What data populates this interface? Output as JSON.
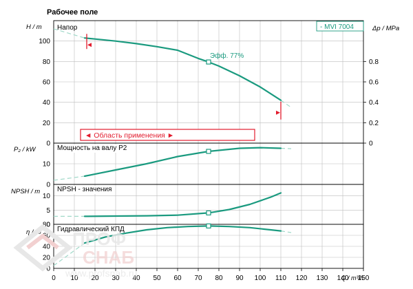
{
  "title": "Рабочее поле",
  "model_label": "- MVI 7004",
  "x_axis": {
    "label": "Q / m³/h",
    "range": [
      0,
      150
    ],
    "ticks": [
      0,
      10,
      20,
      30,
      40,
      50,
      60,
      70,
      80,
      90,
      100,
      110,
      120,
      130,
      140,
      150
    ]
  },
  "colors": {
    "curve": "#1a9a7f",
    "marker": "#e21b2d",
    "grid": "#bcbcbc",
    "extension": "#9fd8c8",
    "axis": "#000000"
  },
  "watermark": {
    "line1": "ПРОФ",
    "line2": "СНАБ",
    "url": "www.profsnab.ru",
    "color": "#e7e7e7",
    "accent": "#f2d0d0"
  },
  "chart_data": [
    {
      "type": "line",
      "panel": "head",
      "title": "Напор",
      "ylabel": "H / m",
      "ylabel_right": "Δp / MPa",
      "xlabel": "Q / m³/h",
      "ylim": [
        0,
        120
      ],
      "yticks": [
        0,
        20,
        40,
        60,
        80,
        100
      ],
      "ylim_right": [
        0,
        1.2
      ],
      "yticks_right": [
        0,
        0.2,
        0.4,
        0.6,
        0.8
      ],
      "series": [
        {
          "x": [
            15,
            20,
            30,
            40,
            50,
            60,
            70,
            75,
            80,
            90,
            100,
            110
          ],
          "y": [
            103,
            102,
            100,
            97.5,
            94.5,
            91,
            83,
            79.5,
            75.5,
            66,
            55,
            42
          ]
        }
      ],
      "extension": {
        "x": [
          0,
          15
        ],
        "y": [
          112,
          103
        ]
      },
      "extension_right": {
        "x": [
          110,
          115
        ],
        "y": [
          42,
          35
        ]
      },
      "best_point": {
        "x": 75,
        "y": 79.5
      },
      "annotation": {
        "text": "Эфф.  77%",
        "x": 75,
        "y": 79.5
      },
      "range_markers": [
        {
          "x": 15,
          "y": 103
        },
        {
          "x": 110,
          "y": 42
        }
      ],
      "application_range": {
        "label": "◄ Область применения ►",
        "x": [
          15,
          110
        ]
      }
    },
    {
      "type": "line",
      "panel": "power",
      "title": "Мощность на валу P2",
      "ylabel": "P₂ / kW",
      "ylim": [
        0,
        20
      ],
      "yticks": [
        0,
        10
      ],
      "series": [
        {
          "x": [
            15,
            30,
            45,
            60,
            75,
            90,
            100,
            110
          ],
          "y": [
            4,
            7,
            10,
            13.5,
            16,
            17.5,
            17.8,
            17.5
          ]
        }
      ],
      "extension": {
        "x": [
          0,
          15
        ],
        "y": [
          2,
          4
        ]
      },
      "extension_right": {
        "x": [
          110,
          115
        ],
        "y": [
          17.5,
          17.3
        ]
      },
      "best_point": {
        "x": 75,
        "y": 16
      }
    },
    {
      "type": "line",
      "panel": "npsh",
      "title": "NPSH - значения",
      "ylabel": "NPSH / m",
      "ylim": [
        0,
        14
      ],
      "yticks": [
        0,
        5,
        10
      ],
      "series": [
        {
          "x": [
            15,
            30,
            45,
            60,
            75,
            85,
            95,
            105,
            110
          ],
          "y": [
            2.8,
            2.9,
            3,
            3.2,
            4,
            5.2,
            7,
            9.5,
            11
          ]
        }
      ],
      "extension": {
        "x": [
          0,
          15
        ],
        "y": [
          2.8,
          2.8
        ]
      },
      "best_point": {
        "x": 75,
        "y": 4
      }
    },
    {
      "type": "line",
      "panel": "efficiency",
      "title": "Гидравлический КПД",
      "ylabel": "η / %",
      "ylim": [
        0,
        80
      ],
      "yticks": [
        0,
        20,
        40,
        60,
        80
      ],
      "series": [
        {
          "x": [
            15,
            25,
            35,
            45,
            55,
            65,
            75,
            85,
            95,
            105,
            110
          ],
          "y": [
            46,
            57,
            64,
            70,
            74,
            76,
            77,
            76,
            74,
            70,
            68
          ]
        }
      ],
      "extension": {
        "x": [
          0,
          15
        ],
        "y": [
          5,
          46
        ]
      },
      "extension_right": {
        "x": [
          110,
          115
        ],
        "y": [
          68,
          65
        ]
      },
      "best_point": {
        "x": 75,
        "y": 77
      }
    }
  ]
}
